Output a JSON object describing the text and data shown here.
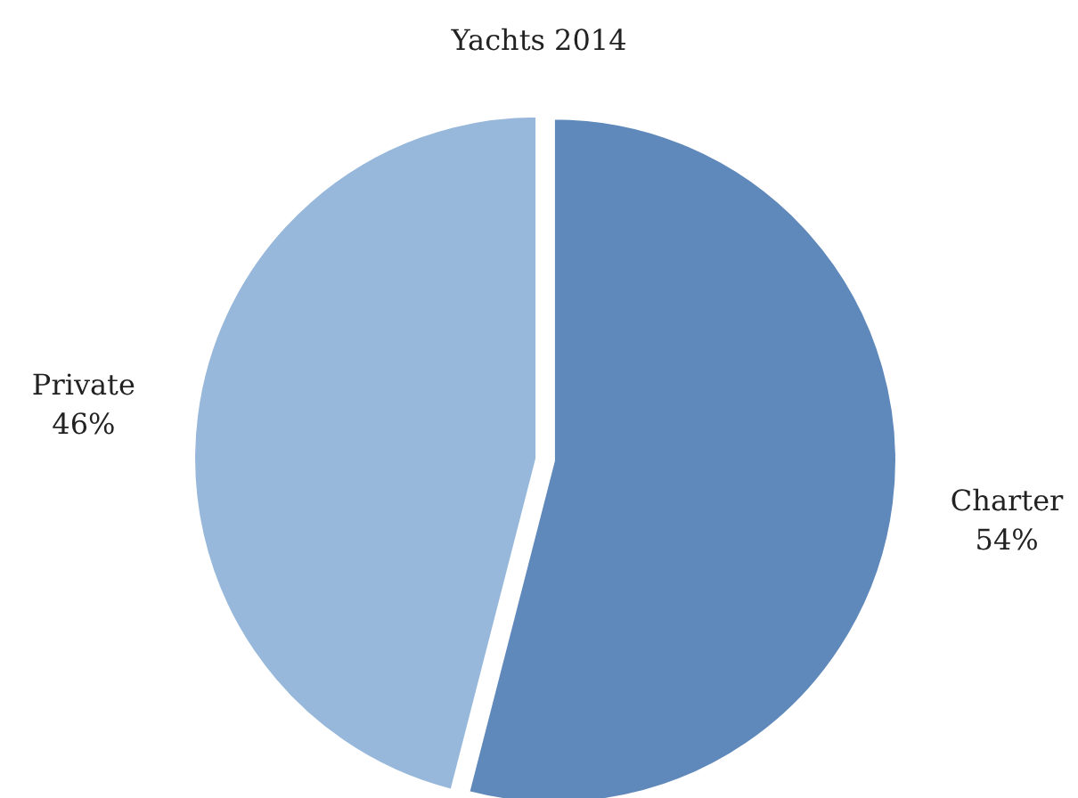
{
  "chart_data": {
    "type": "pie",
    "title": "Yachts 2014",
    "categories": [
      "Charter",
      "Private"
    ],
    "values": [
      54,
      46
    ],
    "value_labels": [
      "54%",
      "46%"
    ],
    "colors": [
      "#5f88bb",
      "#97b8da"
    ]
  }
}
